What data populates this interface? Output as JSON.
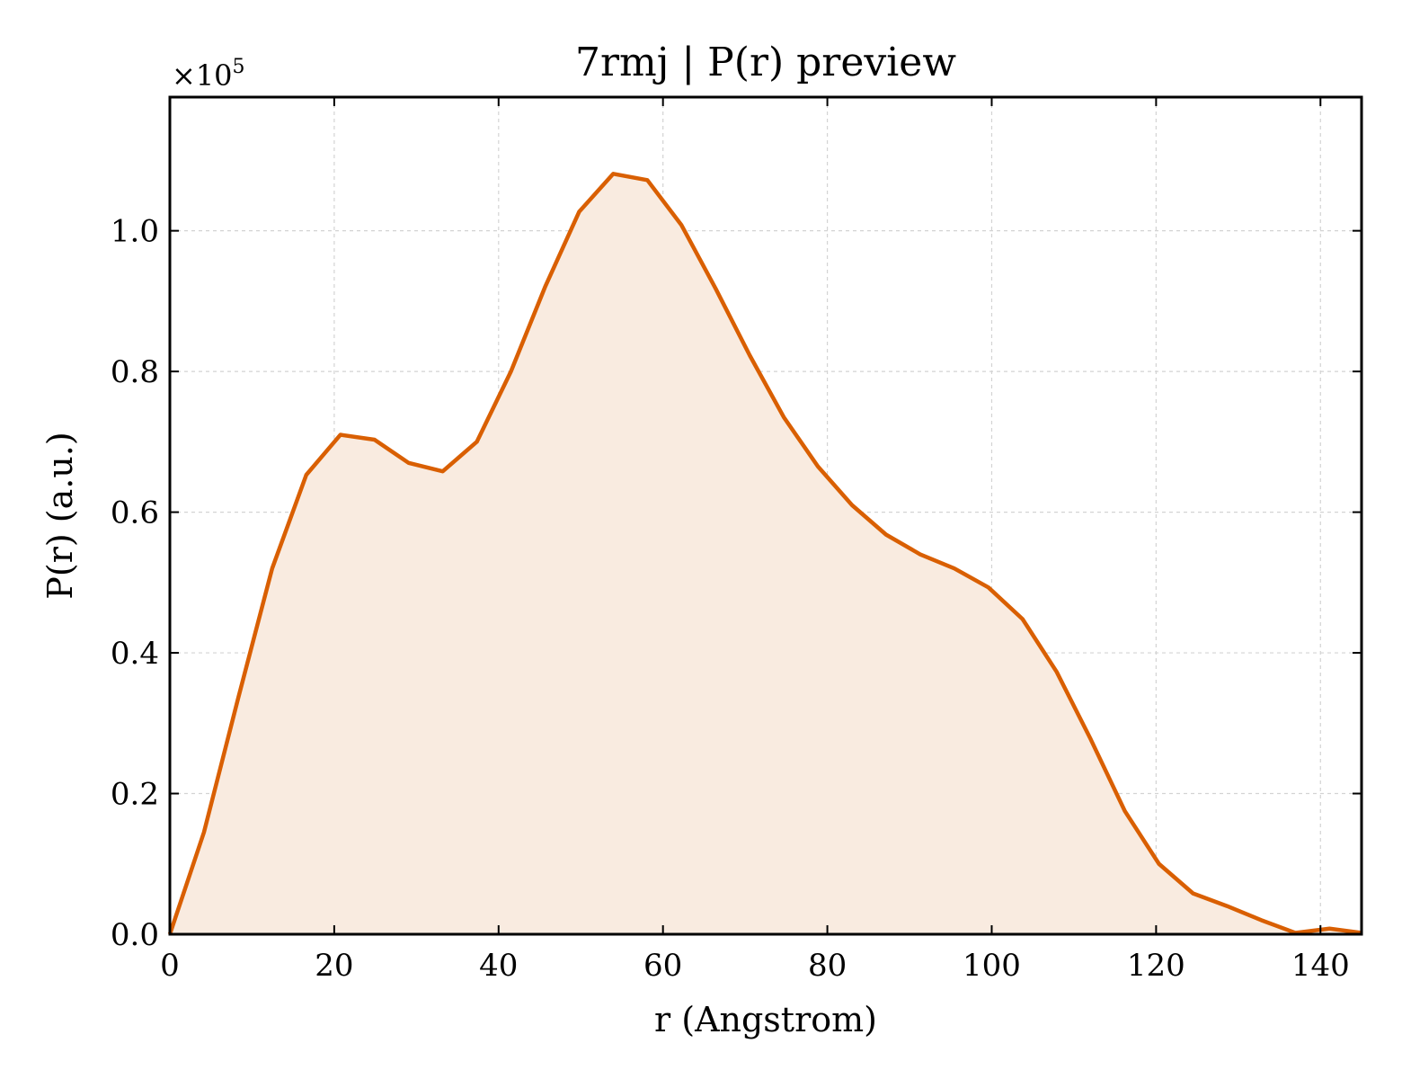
{
  "chart_data": {
    "type": "area",
    "title": "7rmj | P(r) preview",
    "xlabel": "r (Angstrom)",
    "ylabel": "P(r) (a.u.)",
    "y_offset_label": "×10",
    "y_offset_exponent": "5",
    "y_scale": 100000,
    "xlim": [
      0,
      145
    ],
    "ylim": [
      0,
      1.19
    ],
    "xticks": [
      0,
      20,
      40,
      60,
      80,
      100,
      120,
      140
    ],
    "yticks": [
      0.0,
      0.2,
      0.4,
      0.6,
      0.8,
      1.0
    ],
    "xtick_labels": [
      "0",
      "20",
      "40",
      "60",
      "80",
      "100",
      "120",
      "140"
    ],
    "ytick_labels": [
      "0.0",
      "0.2",
      "0.4",
      "0.6",
      "0.8",
      "1.0"
    ],
    "grid": true,
    "line_color": "#d95f02",
    "fill_color": "#f9ebe0",
    "series": [
      {
        "x": [
          0,
          4.15,
          8.3,
          12.45,
          16.6,
          20.75,
          24.9,
          29.05,
          33.2,
          37.35,
          41.5,
          45.65,
          49.8,
          53.95,
          58.1,
          62.25,
          66.4,
          70.55,
          74.7,
          78.85,
          83.0,
          87.15,
          91.3,
          95.45,
          99.6,
          103.75,
          107.9,
          112.05,
          116.2,
          120.35,
          124.5,
          128.65,
          132.8,
          136.95,
          141.1,
          145.0
        ],
        "y": [
          0.0,
          0.145,
          0.335,
          0.52,
          0.653,
          0.71,
          0.703,
          0.67,
          0.658,
          0.7,
          0.8,
          0.92,
          1.027,
          1.081,
          1.072,
          1.008,
          0.918,
          0.823,
          0.735,
          0.665,
          0.61,
          0.568,
          0.54,
          0.52,
          0.493,
          0.448,
          0.373,
          0.277,
          0.175,
          0.1,
          0.058,
          0.04,
          0.02,
          0.002,
          0.008,
          0.002
        ]
      }
    ]
  }
}
